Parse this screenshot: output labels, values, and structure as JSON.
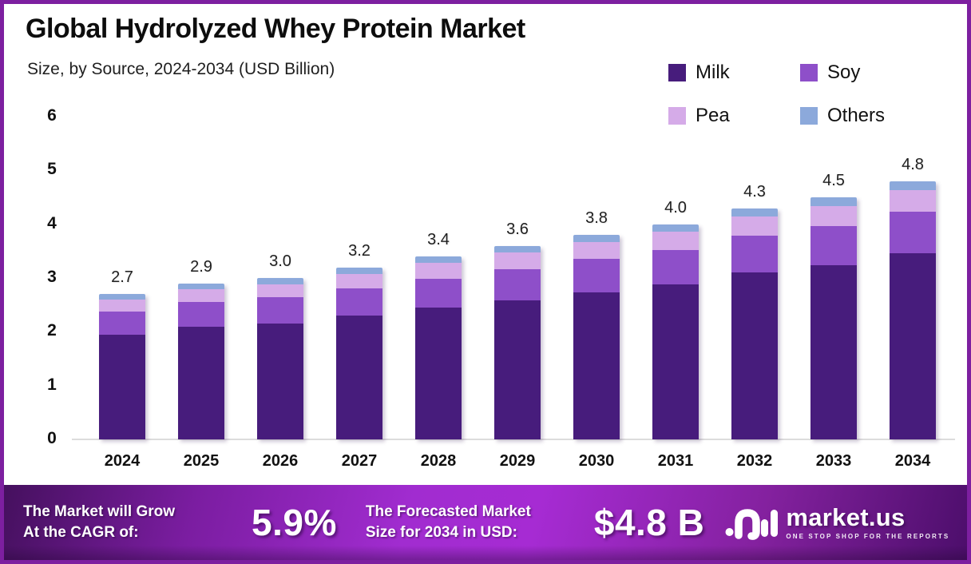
{
  "frame": {
    "border_color": "#7d1fa0"
  },
  "header": {
    "title": "Global Hydrolyzed Whey Protein Market",
    "subtitle": "Size, by Source, 2024-2034 (USD Billion)"
  },
  "legend": [
    {
      "label": "Milk",
      "color": "#471c7c"
    },
    {
      "label": "Soy",
      "color": "#8e4fc9"
    },
    {
      "label": "Pea",
      "color": "#d5abe8"
    },
    {
      "label": "Others",
      "color": "#8ca9db"
    }
  ],
  "chart_data": {
    "type": "bar",
    "stacked": true,
    "title": "Global Hydrolyzed Whey Protein Market Size, by Source, 2024-2034 (USD Billion)",
    "categories": [
      "2024",
      "2025",
      "2026",
      "2027",
      "2028",
      "2029",
      "2030",
      "2031",
      "2032",
      "2033",
      "2034"
    ],
    "series": [
      {
        "name": "Milk",
        "color": "#471c7c",
        "values": [
          1.95,
          2.09,
          2.16,
          2.3,
          2.45,
          2.59,
          2.74,
          2.88,
          3.1,
          3.24,
          3.46
        ]
      },
      {
        "name": "Soy",
        "color": "#8e4fc9",
        "values": [
          0.43,
          0.46,
          0.48,
          0.51,
          0.54,
          0.58,
          0.61,
          0.64,
          0.69,
          0.72,
          0.77
        ]
      },
      {
        "name": "Pea",
        "color": "#d5abe8",
        "values": [
          0.22,
          0.24,
          0.25,
          0.27,
          0.29,
          0.3,
          0.32,
          0.34,
          0.36,
          0.38,
          0.41
        ]
      },
      {
        "name": "Others",
        "color": "#8ca9db",
        "values": [
          0.1,
          0.11,
          0.11,
          0.12,
          0.12,
          0.13,
          0.13,
          0.14,
          0.15,
          0.16,
          0.16
        ]
      }
    ],
    "totals": [
      "2.7",
      "2.9",
      "3.0",
      "3.2",
      "3.4",
      "3.6",
      "3.8",
      "4.0",
      "4.3",
      "4.5",
      "4.8"
    ],
    "xlabel": "",
    "ylabel": "",
    "ylim": [
      0,
      6
    ],
    "yticks": [
      0,
      1,
      2,
      3,
      4,
      5,
      6
    ],
    "grid": false,
    "legend_position": "top-right"
  },
  "footer": {
    "cagr_label_line1": "The Market will Grow",
    "cagr_label_line2": "At the CAGR of:",
    "cagr_value": "5.9%",
    "forecast_label_line1": "The Forecasted Market",
    "forecast_label_line2": "Size for 2034 in USD:",
    "forecast_value": "$4.8 B",
    "brand": {
      "name": "market.us",
      "tagline": "ONE STOP SHOP FOR THE REPORTS"
    }
  }
}
